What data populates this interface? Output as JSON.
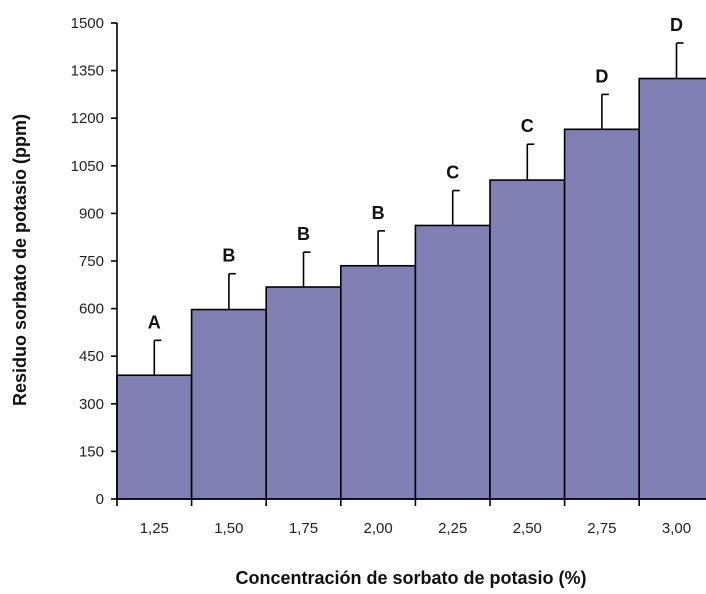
{
  "chart_data": {
    "type": "bar",
    "title": "",
    "xlabel": "Concentración de sorbato de potasio (%)",
    "ylabel": "Residuo sorbato de potasio (ppm)",
    "categories": [
      "1,25",
      "1,50",
      "1,75",
      "2,00",
      "2,25",
      "2,50",
      "2,75",
      "3,00"
    ],
    "values": [
      390,
      597,
      668,
      735,
      862,
      1005,
      1165,
      1325
    ],
    "error_upper": [
      110,
      113,
      110,
      110,
      110,
      113,
      110,
      112
    ],
    "letters": [
      "A",
      "B",
      "B",
      "B",
      "C",
      "C",
      "D",
      "D"
    ],
    "ylim": [
      0,
      1500
    ],
    "yticks": [
      0,
      150,
      300,
      450,
      600,
      750,
      900,
      1050,
      1200,
      1350,
      1500
    ],
    "ytick_labels": [
      "0",
      "150",
      "300",
      "450",
      "600",
      "750",
      "900",
      "1050",
      "1200",
      "1350",
      "1500"
    ],
    "grid": false,
    "bar_color": "#8080b4",
    "bar_edge_color": "#000000"
  }
}
